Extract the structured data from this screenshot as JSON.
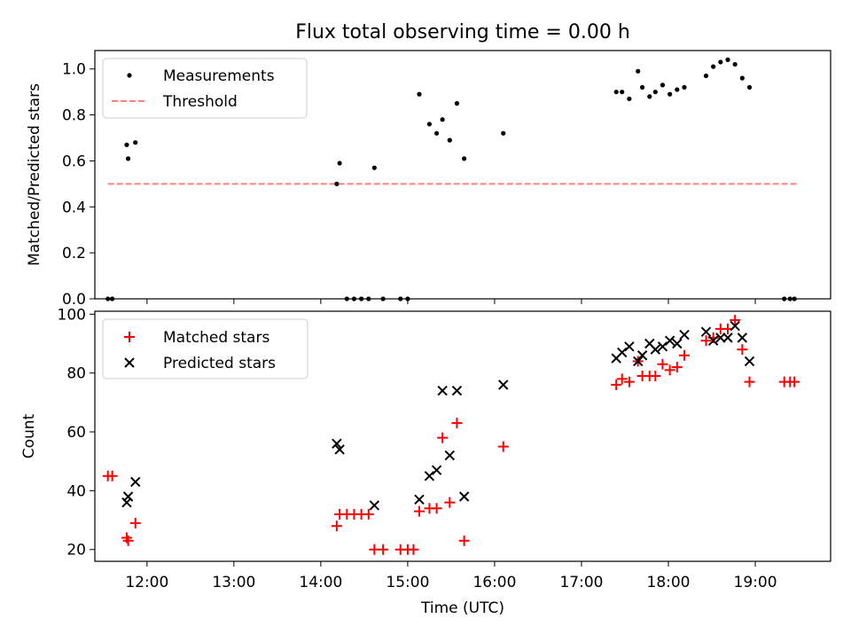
{
  "title": "Flux total observing time = 0.00 h",
  "colors": {
    "measurement": "#000000",
    "threshold": "#ff8080",
    "matched": "#ff0000",
    "predicted": "#000000"
  },
  "chart_data": [
    {
      "type": "scatter",
      "ylabel": "Matched/Predicted stars",
      "ylim": [
        0,
        1.08
      ],
      "xlim": [
        "11:24",
        "19:52"
      ],
      "yticks": [
        "0.0",
        "0.2",
        "0.4",
        "0.6",
        "0.8",
        "1.0"
      ],
      "legend": [
        "Measurements",
        "Threshold"
      ],
      "legend_position": "top-left",
      "threshold": {
        "value": 0.5,
        "x_start": "11:33",
        "x_end": "19:29"
      },
      "measurements": [
        [
          "11:33",
          0.0
        ],
        [
          "11:36",
          0.0
        ],
        [
          "11:46",
          0.67
        ],
        [
          "11:47",
          0.61
        ],
        [
          "11:52",
          0.68
        ],
        [
          "14:11",
          0.5
        ],
        [
          "14:13",
          0.59
        ],
        [
          "14:18",
          0.0
        ],
        [
          "14:23",
          0.0
        ],
        [
          "14:28",
          0.0
        ],
        [
          "14:33",
          0.0
        ],
        [
          "14:37",
          0.57
        ],
        [
          "14:43",
          0.0
        ],
        [
          "14:55",
          0.0
        ],
        [
          "15:00",
          0.0
        ],
        [
          "15:08",
          0.89
        ],
        [
          "15:15",
          0.76
        ],
        [
          "15:20",
          0.72
        ],
        [
          "15:24",
          0.78
        ],
        [
          "15:29",
          0.69
        ],
        [
          "15:34",
          0.85
        ],
        [
          "15:39",
          0.61
        ],
        [
          "16:06",
          0.72
        ],
        [
          "17:24",
          0.9
        ],
        [
          "17:28",
          0.9
        ],
        [
          "17:33",
          0.87
        ],
        [
          "17:39",
          0.99
        ],
        [
          "17:42",
          0.92
        ],
        [
          "17:47",
          0.88
        ],
        [
          "17:51",
          0.9
        ],
        [
          "17:56",
          0.93
        ],
        [
          "18:01",
          0.89
        ],
        [
          "18:06",
          0.91
        ],
        [
          "18:11",
          0.92
        ],
        [
          "18:26",
          0.97
        ],
        [
          "18:31",
          1.01
        ],
        [
          "18:36",
          1.03
        ],
        [
          "18:41",
          1.04
        ],
        [
          "18:46",
          1.02
        ],
        [
          "18:51",
          0.96
        ],
        [
          "18:56",
          0.92
        ],
        [
          "19:20",
          0.0
        ],
        [
          "19:24",
          0.0
        ],
        [
          "19:27",
          0.0
        ]
      ]
    },
    {
      "type": "scatter",
      "ylabel": "Count",
      "xlabel": "Time (UTC)",
      "ylim": [
        16,
        101
      ],
      "xlim": [
        "11:24",
        "19:52"
      ],
      "yticks": [
        "20",
        "40",
        "60",
        "80",
        "100"
      ],
      "xticks": [
        "12:00",
        "13:00",
        "14:00",
        "15:00",
        "16:00",
        "17:00",
        "18:00",
        "19:00"
      ],
      "legend": [
        "Matched stars",
        "Predicted stars"
      ],
      "legend_position": "top-left",
      "series": [
        {
          "name": "Matched stars",
          "marker": "+",
          "points": [
            [
              "11:33",
              45
            ],
            [
              "11:36",
              45
            ],
            [
              "11:46",
              24
            ],
            [
              "11:47",
              23
            ],
            [
              "11:52",
              29
            ],
            [
              "14:11",
              28
            ],
            [
              "14:13",
              32
            ],
            [
              "14:18",
              32
            ],
            [
              "14:23",
              32
            ],
            [
              "14:28",
              32
            ],
            [
              "14:33",
              32
            ],
            [
              "14:37",
              20
            ],
            [
              "14:43",
              20
            ],
            [
              "14:55",
              20
            ],
            [
              "15:00",
              20
            ],
            [
              "15:04",
              20
            ],
            [
              "15:08",
              33
            ],
            [
              "15:15",
              34
            ],
            [
              "15:20",
              34
            ],
            [
              "15:24",
              58
            ],
            [
              "15:29",
              36
            ],
            [
              "15:34",
              63
            ],
            [
              "15:39",
              23
            ],
            [
              "16:06",
              55
            ],
            [
              "17:24",
              76
            ],
            [
              "17:28",
              78
            ],
            [
              "17:33",
              77
            ],
            [
              "17:39",
              84
            ],
            [
              "17:42",
              79
            ],
            [
              "17:47",
              79
            ],
            [
              "17:51",
              79
            ],
            [
              "17:56",
              83
            ],
            [
              "18:01",
              81
            ],
            [
              "18:06",
              82
            ],
            [
              "18:11",
              86
            ],
            [
              "18:26",
              91
            ],
            [
              "18:31",
              92
            ],
            [
              "18:36",
              95
            ],
            [
              "18:41",
              95
            ],
            [
              "18:46",
              98
            ],
            [
              "18:51",
              88
            ],
            [
              "18:56",
              77
            ],
            [
              "19:20",
              77
            ],
            [
              "19:24",
              77
            ],
            [
              "19:27",
              77
            ]
          ]
        },
        {
          "name": "Predicted stars",
          "marker": "x",
          "points": [
            [
              "11:46",
              36
            ],
            [
              "11:47",
              38
            ],
            [
              "11:52",
              43
            ],
            [
              "14:11",
              56
            ],
            [
              "14:13",
              54
            ],
            [
              "14:37",
              35
            ],
            [
              "15:08",
              37
            ],
            [
              "15:15",
              45
            ],
            [
              "15:20",
              47
            ],
            [
              "15:24",
              74
            ],
            [
              "15:29",
              52
            ],
            [
              "15:34",
              74
            ],
            [
              "15:39",
              38
            ],
            [
              "16:06",
              76
            ],
            [
              "17:24",
              85
            ],
            [
              "17:28",
              87
            ],
            [
              "17:33",
              89
            ],
            [
              "17:39",
              84
            ],
            [
              "17:42",
              86
            ],
            [
              "17:47",
              90
            ],
            [
              "17:51",
              88
            ],
            [
              "17:56",
              89
            ],
            [
              "18:01",
              91
            ],
            [
              "18:06",
              90
            ],
            [
              "18:11",
              93
            ],
            [
              "18:26",
              94
            ],
            [
              "18:31",
              91
            ],
            [
              "18:36",
              92
            ],
            [
              "18:41",
              92
            ],
            [
              "18:46",
              96
            ],
            [
              "18:51",
              92
            ],
            [
              "18:56",
              84
            ]
          ]
        }
      ]
    }
  ]
}
